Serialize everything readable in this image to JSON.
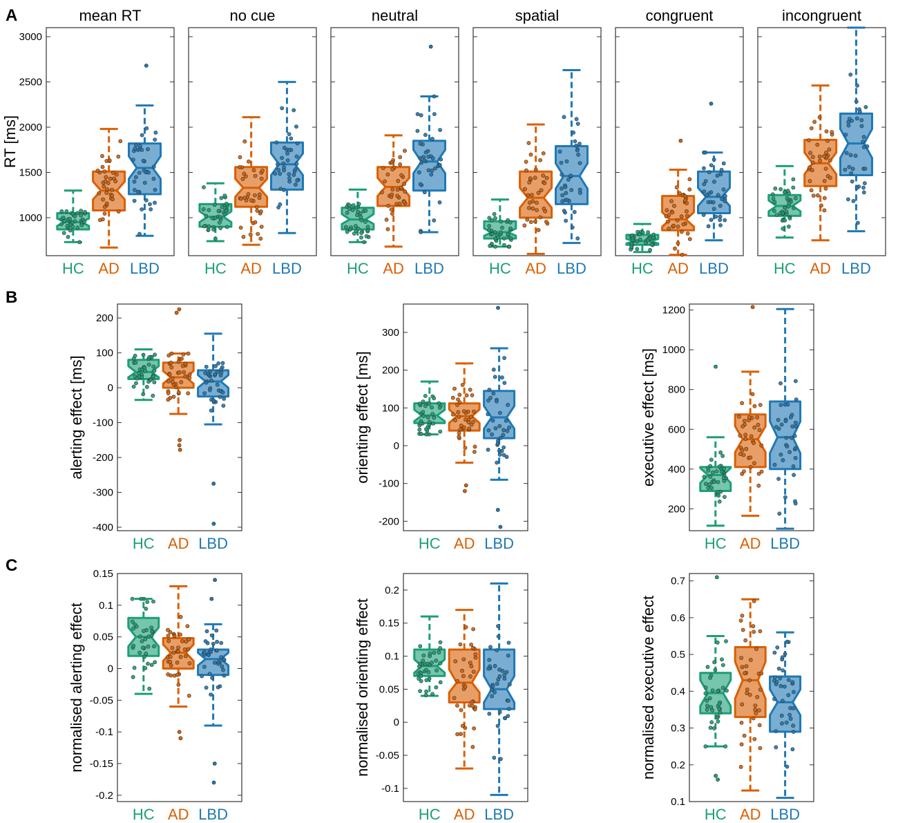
{
  "figure": {
    "panel_letters": [
      "A",
      "B",
      "C"
    ]
  },
  "groups": [
    "HC",
    "AD",
    "LBD"
  ],
  "colors": {
    "HC": "#1b9e77",
    "AD": "#d95f02",
    "LBD": "#1f78b4"
  },
  "chart_data": [
    {
      "type": "box",
      "row": "A",
      "title": "mean RT",
      "ylabel": "RT [ms]",
      "ylim": [
        580,
        3100
      ],
      "yticks": [
        1000,
        1500,
        2000,
        2500,
        3000
      ],
      "boxes": [
        {
          "group": "HC",
          "whisker_low": 730,
          "q1": 870,
          "median": 950,
          "q3": 1050,
          "whisker_high": 1300,
          "notch_low": 910,
          "notch_high": 990
        },
        {
          "group": "AD",
          "whisker_low": 670,
          "q1": 1080,
          "median": 1300,
          "q3": 1510,
          "whisker_high": 1980,
          "notch_low": 1200,
          "notch_high": 1400
        },
        {
          "group": "LBD",
          "whisker_low": 800,
          "q1": 1260,
          "median": 1550,
          "q3": 1820,
          "whisker_high": 2240,
          "notch_low": 1430,
          "notch_high": 1680
        }
      ],
      "outliers": [
        {
          "group": "LBD",
          "value": 2680
        }
      ]
    },
    {
      "type": "box",
      "row": "A",
      "title": "no cue",
      "ylim": [
        580,
        3100
      ],
      "yticks": [
        1000,
        1500,
        2000,
        2500,
        3000
      ],
      "boxes": [
        {
          "group": "HC",
          "whisker_low": 740,
          "q1": 900,
          "median": 1010,
          "q3": 1150,
          "whisker_high": 1380,
          "notch_low": 950,
          "notch_high": 1070
        },
        {
          "group": "AD",
          "whisker_low": 700,
          "q1": 1120,
          "median": 1330,
          "q3": 1560,
          "whisker_high": 2110,
          "notch_low": 1230,
          "notch_high": 1430
        },
        {
          "group": "LBD",
          "whisker_low": 830,
          "q1": 1310,
          "median": 1590,
          "q3": 1830,
          "whisker_high": 2500,
          "notch_low": 1470,
          "notch_high": 1710
        }
      ],
      "outliers": []
    },
    {
      "type": "box",
      "row": "A",
      "title": "neutral",
      "ylim": [
        580,
        3100
      ],
      "yticks": [
        1000,
        1500,
        2000,
        2500,
        3000
      ],
      "boxes": [
        {
          "group": "HC",
          "whisker_low": 730,
          "q1": 870,
          "median": 980,
          "q3": 1110,
          "whisker_high": 1310,
          "notch_low": 930,
          "notch_high": 1040
        },
        {
          "group": "AD",
          "whisker_low": 680,
          "q1": 1130,
          "median": 1340,
          "q3": 1560,
          "whisker_high": 1910,
          "notch_low": 1240,
          "notch_high": 1440
        },
        {
          "group": "LBD",
          "whisker_low": 840,
          "q1": 1300,
          "median": 1620,
          "q3": 1850,
          "whisker_high": 2340,
          "notch_low": 1490,
          "notch_high": 1750
        }
      ],
      "outliers": [
        {
          "group": "LBD",
          "value": 2890
        }
      ]
    },
    {
      "type": "box",
      "row": "A",
      "title": "spatial",
      "ylim": [
        580,
        3100
      ],
      "yticks": [
        1000,
        1500,
        2000,
        2500,
        3000
      ],
      "boxes": [
        {
          "group": "HC",
          "whisker_low": 680,
          "q1": 770,
          "median": 840,
          "q3": 960,
          "whisker_high": 1200,
          "notch_low": 800,
          "notch_high": 880
        },
        {
          "group": "AD",
          "whisker_low": 600,
          "q1": 1000,
          "median": 1220,
          "q3": 1510,
          "whisker_high": 2030,
          "notch_low": 1110,
          "notch_high": 1330
        },
        {
          "group": "LBD",
          "whisker_low": 720,
          "q1": 1150,
          "median": 1460,
          "q3": 1790,
          "whisker_high": 2630,
          "notch_low": 1320,
          "notch_high": 1600
        }
      ],
      "outliers": []
    },
    {
      "type": "box",
      "row": "A",
      "title": "congruent",
      "ylim": [
        580,
        3100
      ],
      "yticks": [
        1000,
        1500,
        2000,
        2500,
        3000
      ],
      "boxes": [
        {
          "group": "HC",
          "whisker_low": 620,
          "q1": 700,
          "median": 740,
          "q3": 810,
          "whisker_high": 930,
          "notch_low": 715,
          "notch_high": 765
        },
        {
          "group": "AD",
          "whisker_low": 590,
          "q1": 860,
          "median": 980,
          "q3": 1240,
          "whisker_high": 1530,
          "notch_low": 900,
          "notch_high": 1060
        },
        {
          "group": "LBD",
          "whisker_low": 750,
          "q1": 1050,
          "median": 1230,
          "q3": 1510,
          "whisker_high": 1720,
          "notch_low": 1130,
          "notch_high": 1330
        }
      ],
      "outliers": [
        {
          "group": "AD",
          "value": 1850
        },
        {
          "group": "LBD",
          "value": 2260
        }
      ]
    },
    {
      "type": "box",
      "row": "A",
      "title": "incongruent",
      "ylim": [
        580,
        3100
      ],
      "yticks": [
        1000,
        1500,
        2000,
        2500,
        3000
      ],
      "boxes": [
        {
          "group": "HC",
          "whisker_low": 780,
          "q1": 1020,
          "median": 1130,
          "q3": 1250,
          "whisker_high": 1570,
          "notch_low": 1070,
          "notch_high": 1190
        },
        {
          "group": "AD",
          "whisker_low": 750,
          "q1": 1350,
          "median": 1600,
          "q3": 1860,
          "whisker_high": 2460,
          "notch_low": 1480,
          "notch_high": 1720
        },
        {
          "group": "LBD",
          "whisker_low": 850,
          "q1": 1470,
          "median": 1820,
          "q3": 2150,
          "whisker_high": 3100,
          "notch_low": 1660,
          "notch_high": 1980
        }
      ],
      "outliers": []
    },
    {
      "type": "box",
      "row": "B",
      "ylabel": "alerting effect [ms]",
      "ylim": [
        -410,
        240
      ],
      "yticks": [
        -400,
        -300,
        -200,
        -100,
        0,
        100,
        200
      ],
      "boxes": [
        {
          "group": "HC",
          "whisker_low": -35,
          "q1": 25,
          "median": 45,
          "q3": 80,
          "whisker_high": 110,
          "notch_low": 30,
          "notch_high": 62
        },
        {
          "group": "AD",
          "whisker_low": -75,
          "q1": 0,
          "median": 30,
          "q3": 72,
          "whisker_high": 98,
          "notch_low": 12,
          "notch_high": 48
        },
        {
          "group": "LBD",
          "whisker_low": -105,
          "q1": -25,
          "median": 18,
          "q3": 50,
          "whisker_high": 155,
          "notch_low": 0,
          "notch_high": 36
        }
      ],
      "outliers": [
        {
          "group": "AD",
          "value": 225
        },
        {
          "group": "AD",
          "value": 215
        },
        {
          "group": "AD",
          "value": -150
        },
        {
          "group": "AD",
          "value": -165
        },
        {
          "group": "AD",
          "value": -178
        },
        {
          "group": "LBD",
          "value": -275
        },
        {
          "group": "LBD",
          "value": -390
        }
      ]
    },
    {
      "type": "box",
      "row": "B",
      "ylabel": "orienting effect [ms]",
      "ylim": [
        -225,
        375
      ],
      "yticks": [
        -200,
        -100,
        0,
        100,
        200,
        300
      ],
      "boxes": [
        {
          "group": "HC",
          "whisker_low": 30,
          "q1": 60,
          "median": 80,
          "q3": 112,
          "whisker_high": 170,
          "notch_low": 65,
          "notch_high": 95
        },
        {
          "group": "AD",
          "whisker_low": -45,
          "q1": 40,
          "median": 78,
          "q3": 112,
          "whisker_high": 218,
          "notch_low": 60,
          "notch_high": 96
        },
        {
          "group": "LBD",
          "whisker_low": -90,
          "q1": 20,
          "median": 75,
          "q3": 145,
          "whisker_high": 258,
          "notch_low": 45,
          "notch_high": 105
        }
      ],
      "outliers": [
        {
          "group": "AD",
          "value": -105
        },
        {
          "group": "AD",
          "value": -120
        },
        {
          "group": "LBD",
          "value": 365
        },
        {
          "group": "LBD",
          "value": -170
        },
        {
          "group": "LBD",
          "value": -215
        }
      ]
    },
    {
      "type": "box",
      "row": "B",
      "ylabel": "executive effect [ms]",
      "ylim": [
        90,
        1230
      ],
      "yticks": [
        200,
        400,
        600,
        800,
        1000,
        1200
      ],
      "boxes": [
        {
          "group": "HC",
          "whisker_low": 115,
          "q1": 290,
          "median": 370,
          "q3": 410,
          "whisker_high": 560,
          "notch_low": 330,
          "notch_high": 405
        },
        {
          "group": "AD",
          "whisker_low": 165,
          "q1": 410,
          "median": 550,
          "q3": 675,
          "whisker_high": 890,
          "notch_low": 485,
          "notch_high": 615
        },
        {
          "group": "LBD",
          "whisker_low": 100,
          "q1": 400,
          "median": 560,
          "q3": 740,
          "whisker_high": 1205,
          "notch_low": 480,
          "notch_high": 640
        }
      ],
      "outliers": [
        {
          "group": "HC",
          "value": 915
        },
        {
          "group": "AD",
          "value": 1215
        }
      ]
    },
    {
      "type": "box",
      "row": "C",
      "ylabel": "normalised alerting effect",
      "ylim": [
        -0.21,
        0.15
      ],
      "yticks": [
        -0.2,
        -0.15,
        -0.1,
        -0.05,
        0,
        0.05,
        0.1,
        0.15
      ],
      "ytick_labels": [
        "-0.2",
        "-0.15",
        "-0.1",
        "-0.05",
        "0",
        "0.05",
        "0.1",
        "0.15"
      ],
      "boxes": [
        {
          "group": "HC",
          "whisker_low": -0.04,
          "q1": 0.02,
          "median": 0.05,
          "q3": 0.08,
          "whisker_high": 0.11,
          "notch_low": 0.035,
          "notch_high": 0.065
        },
        {
          "group": "AD",
          "whisker_low": -0.06,
          "q1": 0.0,
          "median": 0.025,
          "q3": 0.048,
          "whisker_high": 0.13,
          "notch_low": 0.012,
          "notch_high": 0.038
        },
        {
          "group": "LBD",
          "whisker_low": -0.09,
          "q1": -0.01,
          "median": 0.015,
          "q3": 0.03,
          "whisker_high": 0.07,
          "notch_low": 0.005,
          "notch_high": 0.025
        }
      ],
      "outliers": [
        {
          "group": "AD",
          "value": -0.1
        },
        {
          "group": "AD",
          "value": -0.11
        },
        {
          "group": "LBD",
          "value": 0.14
        },
        {
          "group": "LBD",
          "value": 0.11
        },
        {
          "group": "LBD",
          "value": -0.15
        },
        {
          "group": "LBD",
          "value": -0.18
        }
      ]
    },
    {
      "type": "box",
      "row": "C",
      "ylabel": "normalised orienting effect",
      "ylim": [
        -0.12,
        0.225
      ],
      "yticks": [
        -0.1,
        -0.05,
        0,
        0.05,
        0.1,
        0.15,
        0.2
      ],
      "ytick_labels": [
        "-0.1",
        "-0.05",
        "0",
        "0.05",
        "0.1",
        "0.15",
        "0.2"
      ],
      "boxes": [
        {
          "group": "HC",
          "whisker_low": 0.04,
          "q1": 0.07,
          "median": 0.085,
          "q3": 0.11,
          "whisker_high": 0.16,
          "notch_low": 0.075,
          "notch_high": 0.095
        },
        {
          "group": "AD",
          "whisker_low": -0.07,
          "q1": 0.03,
          "median": 0.06,
          "q3": 0.11,
          "whisker_high": 0.17,
          "notch_low": 0.045,
          "notch_high": 0.08
        },
        {
          "group": "LBD",
          "whisker_low": -0.11,
          "q1": 0.02,
          "median": 0.05,
          "q3": 0.11,
          "whisker_high": 0.21,
          "notch_low": 0.03,
          "notch_high": 0.07
        }
      ],
      "outliers": []
    },
    {
      "type": "box",
      "row": "C",
      "ylabel": "normalised executive effect",
      "ylim": [
        0.1,
        0.72
      ],
      "yticks": [
        0.1,
        0.2,
        0.3,
        0.4,
        0.5,
        0.6,
        0.7
      ],
      "ytick_labels": [
        "0.1",
        "0.2",
        "0.3",
        "0.4",
        "0.5",
        "0.6",
        "0.7"
      ],
      "boxes": [
        {
          "group": "HC",
          "whisker_low": 0.25,
          "q1": 0.34,
          "median": 0.395,
          "q3": 0.45,
          "whisker_high": 0.55,
          "notch_low": 0.36,
          "notch_high": 0.43
        },
        {
          "group": "AD",
          "whisker_low": 0.13,
          "q1": 0.33,
          "median": 0.43,
          "q3": 0.52,
          "whisker_high": 0.65,
          "notch_low": 0.38,
          "notch_high": 0.48
        },
        {
          "group": "LBD",
          "whisker_low": 0.11,
          "q1": 0.29,
          "median": 0.37,
          "q3": 0.44,
          "whisker_high": 0.56,
          "notch_low": 0.335,
          "notch_high": 0.405
        }
      ],
      "outliers": [
        {
          "group": "HC",
          "value": 0.71
        },
        {
          "group": "HC",
          "value": 0.17
        },
        {
          "group": "HC",
          "value": 0.16
        }
      ]
    }
  ]
}
